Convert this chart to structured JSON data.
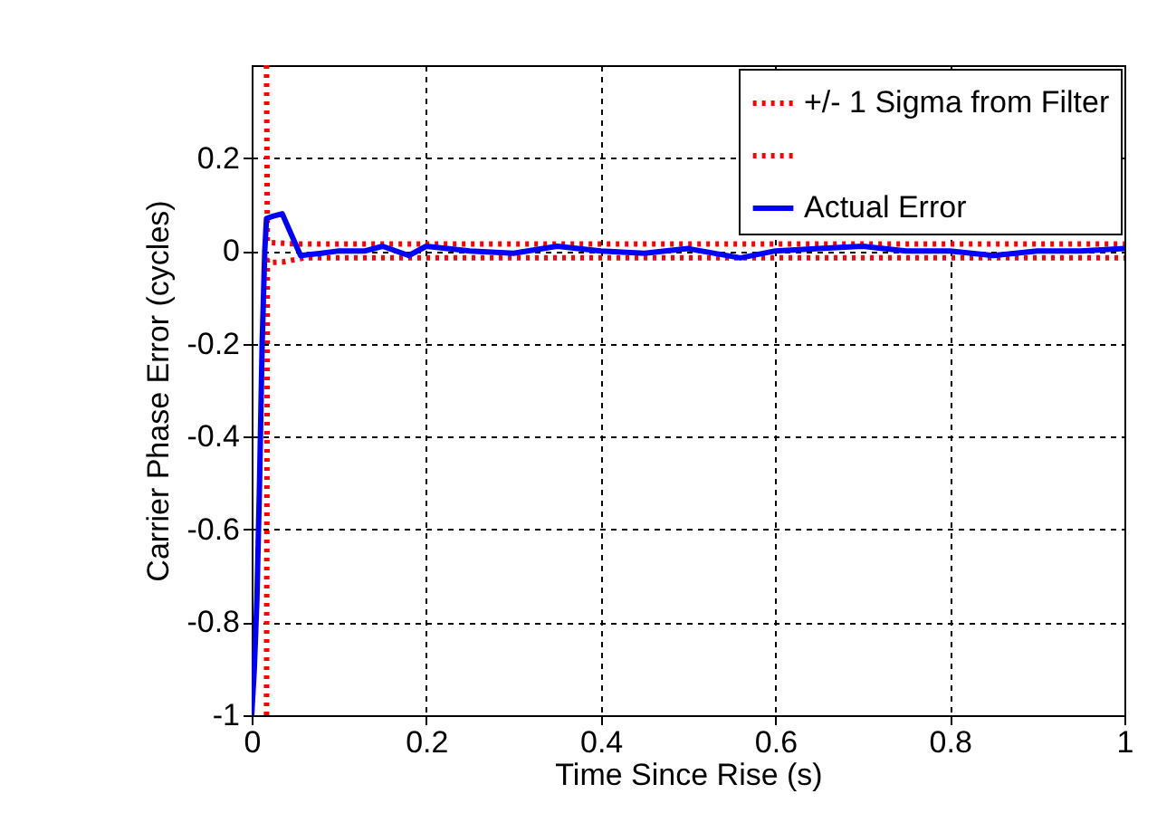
{
  "chart_data": {
    "type": "line",
    "xlabel": "Time Since Rise (s)",
    "ylabel": "Carrier Phase Error (cycles)",
    "xlim": [
      0,
      1
    ],
    "xticks": [
      0,
      0.2,
      0.4,
      0.6,
      0.8,
      1
    ],
    "ylim": [
      -1,
      0.4
    ],
    "yticks": [
      -1,
      -0.8,
      -0.6,
      -0.4,
      -0.2,
      0,
      0.2
    ],
    "grid": true,
    "legend": "top right",
    "series": [
      {
        "name": "+/- 1 Sigma from Filter",
        "color": "#ff0000",
        "line_style": "dotted",
        "x": [
          0.017,
          0.018,
          0.02,
          0.05,
          1
        ],
        "values": [
          0.4,
          0.02,
          0.018,
          0.015,
          0.015
        ]
      },
      {
        "color": "#ff0000",
        "line_style": "dotted",
        "x": [
          0.017,
          0.018,
          0.02,
          0.035,
          0.06,
          1
        ],
        "values": [
          -1,
          -0.02,
          -0.025,
          -0.024,
          -0.015,
          -0.015
        ]
      },
      {
        "name": "Actual Error",
        "color": "#0000ff",
        "line_style": "solid",
        "x": [
          0,
          0.003,
          0.006,
          0.009,
          0.012,
          0.015,
          0.017,
          0.025,
          0.035,
          0.056,
          0.08,
          0.1,
          0.13,
          0.15,
          0.18,
          0.2,
          0.25,
          0.3,
          0.35,
          0.4,
          0.45,
          0.5,
          0.56,
          0.6,
          0.65,
          0.7,
          0.75,
          0.8,
          0.85,
          0.9,
          0.95,
          1
        ],
        "values": [
          -1,
          -0.9,
          -0.75,
          -0.5,
          -0.2,
          0,
          0.07,
          0.075,
          0.08,
          -0.01,
          -0.005,
          0,
          0,
          0.01,
          -0.01,
          0.01,
          0,
          -0.005,
          0.01,
          0,
          -0.005,
          0.005,
          -0.015,
          0,
          0.005,
          0.01,
          0,
          0,
          -0.01,
          0,
          0,
          0.005
        ]
      }
    ]
  }
}
